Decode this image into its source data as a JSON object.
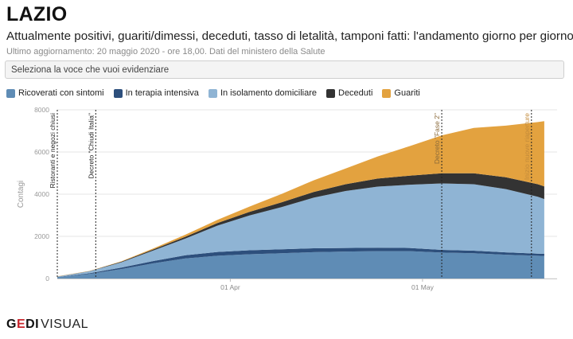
{
  "header": {
    "title": "LAZIO",
    "subtitle": "Attualmente positivi, guariti/dimessi, deceduti, tasso di letalità, tamponi fatti: l'andamento giorno per giorno",
    "updated": "Ultimo aggiornamento: 20 maggio 2020 - ore 18,00. Dati del ministero della Salute"
  },
  "selector": {
    "placeholder": "Seleziona la voce che vuoi evidenziare"
  },
  "legend": [
    {
      "label": "Ricoverati con sintomi",
      "color": "#5f8cb5"
    },
    {
      "label": "In terapia intensiva",
      "color": "#2d4f7c"
    },
    {
      "label": "In isolamento domiciliare",
      "color": "#8fb4d4"
    },
    {
      "label": "Deceduti",
      "color": "#333333"
    },
    {
      "label": "Guariti",
      "color": "#e3a23f"
    }
  ],
  "chart_data": {
    "type": "area",
    "stacked": true,
    "ylabel": "Contagi",
    "ylim": [
      0,
      8000
    ],
    "yticks": [
      0,
      2000,
      4000,
      6000,
      8000
    ],
    "xlim": [
      "2020-03-05",
      "2020-05-22"
    ],
    "xticks": [
      {
        "date": "2020-04-01",
        "label": "01 Apr"
      },
      {
        "date": "2020-05-01",
        "label": "01 May"
      }
    ],
    "x": [
      "2020-03-05",
      "2020-03-10",
      "2020-03-15",
      "2020-03-20",
      "2020-03-25",
      "2020-03-30",
      "2020-04-04",
      "2020-04-09",
      "2020-04-14",
      "2020-04-19",
      "2020-04-24",
      "2020-04-29",
      "2020-05-04",
      "2020-05-09",
      "2020-05-14",
      "2020-05-19",
      "2020-05-20"
    ],
    "series": [
      {
        "name": "Ricoverati con sintomi",
        "color": "#5f8cb5",
        "values": [
          60,
          220,
          450,
          720,
          950,
          1080,
          1150,
          1200,
          1250,
          1280,
          1300,
          1300,
          1230,
          1200,
          1130,
          1080,
          1070
        ]
      },
      {
        "name": "In terapia intensiva",
        "color": "#2d4f7c",
        "values": [
          10,
          30,
          70,
          110,
          150,
          180,
          190,
          190,
          185,
          170,
          160,
          150,
          130,
          120,
          110,
          100,
          100
        ]
      },
      {
        "name": "In isolamento domiciliare",
        "color": "#8fb4d4",
        "values": [
          20,
          90,
          250,
          500,
          800,
          1250,
          1650,
          2000,
          2400,
          2700,
          2900,
          3000,
          3150,
          3150,
          3000,
          2700,
          2600
        ]
      },
      {
        "name": "Deceduti",
        "color": "#333333",
        "values": [
          5,
          10,
          25,
          50,
          80,
          120,
          170,
          220,
          270,
          320,
          380,
          430,
          480,
          520,
          560,
          590,
          595
        ]
      },
      {
        "name": "Guariti",
        "color": "#e3a23f",
        "values": [
          5,
          10,
          20,
          50,
          100,
          150,
          250,
          400,
          550,
          750,
          1050,
          1400,
          1800,
          2150,
          2450,
          2950,
          3100
        ]
      }
    ],
    "annotations": [
      {
        "date": "2020-03-05",
        "label": "Ristoranti e negozi chiusi"
      },
      {
        "date": "2020-03-11",
        "label": "Decreto \"Chiudi Italia\""
      },
      {
        "date": "2020-05-04",
        "label": "Decreto \"Fase 2\""
      },
      {
        "date": "2020-05-18",
        "label": "Inizio nuove riaperture"
      }
    ]
  },
  "footer": {
    "logo_g": "G",
    "logo_e": "E",
    "logo_di": "DI",
    "logo_visual": "VISUAL"
  }
}
